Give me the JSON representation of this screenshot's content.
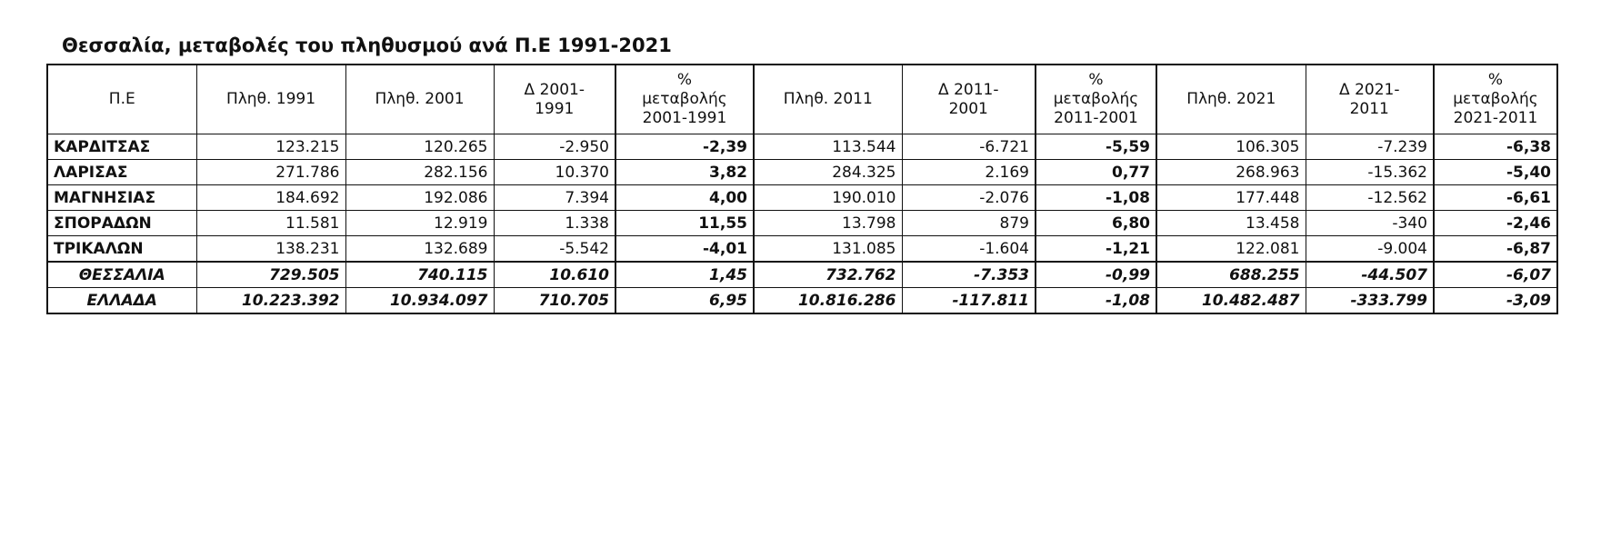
{
  "title": "Θεσσαλία, μεταβολές του πληθυσμού ανά Π.Ε 1991-2021",
  "table": {
    "headers": [
      "Π.Ε",
      "Πληθ. 1991",
      "Πληθ. 2001",
      "Δ 2001-\n1991",
      "%\nμεταβολής\n2001-1991",
      "Πληθ. 2011",
      "Δ 2011-\n2001",
      "%\nμεταβολής\n2011-2001",
      "Πληθ. 2021",
      "Δ 2021-\n2011",
      "%\nμεταβολής\n2021-2011"
    ],
    "rows": [
      [
        "ΚΑΡΔΙΤΣΑΣ",
        "123.215",
        "120.265",
        "-2.950",
        "-2,39",
        "113.544",
        "-6.721",
        "-5,59",
        "106.305",
        "-7.239",
        "-6,38"
      ],
      [
        "ΛΑΡΙΣΑΣ",
        "271.786",
        "282.156",
        "10.370",
        "3,82",
        "284.325",
        "2.169",
        "0,77",
        "268.963",
        "-15.362",
        "-5,40"
      ],
      [
        "ΜΑΓΝΗΣΙΑΣ",
        "184.692",
        "192.086",
        "7.394",
        "4,00",
        "190.010",
        "-2.076",
        "-1,08",
        "177.448",
        "-12.562",
        "-6,61"
      ],
      [
        "ΣΠΟΡΑΔΩΝ",
        "11.581",
        "12.919",
        "1.338",
        "11,55",
        "13.798",
        "879",
        "6,80",
        "13.458",
        "-340",
        "-2,46"
      ],
      [
        "ΤΡΙΚΑΛΩΝ",
        "138.231",
        "132.689",
        "-5.542",
        "-4,01",
        "131.085",
        "-1.604",
        "-1,21",
        "122.081",
        "-9.004",
        "-6,87"
      ],
      [
        "ΘΕΣΣΑΛΙΑ",
        "729.505",
        "740.115",
        "10.610",
        "1,45",
        "732.762",
        "-7.353",
        "-0,99",
        "688.255",
        "-44.507",
        "-6,07"
      ],
      [
        "ΕΛΛΑΔΑ",
        "10.223.392",
        "10.934.097",
        "710.705",
        "6,95",
        "10.816.286",
        "-117.811",
        "-1,08",
        "10.482.487",
        "-333.799",
        "-3,09"
      ]
    ]
  }
}
